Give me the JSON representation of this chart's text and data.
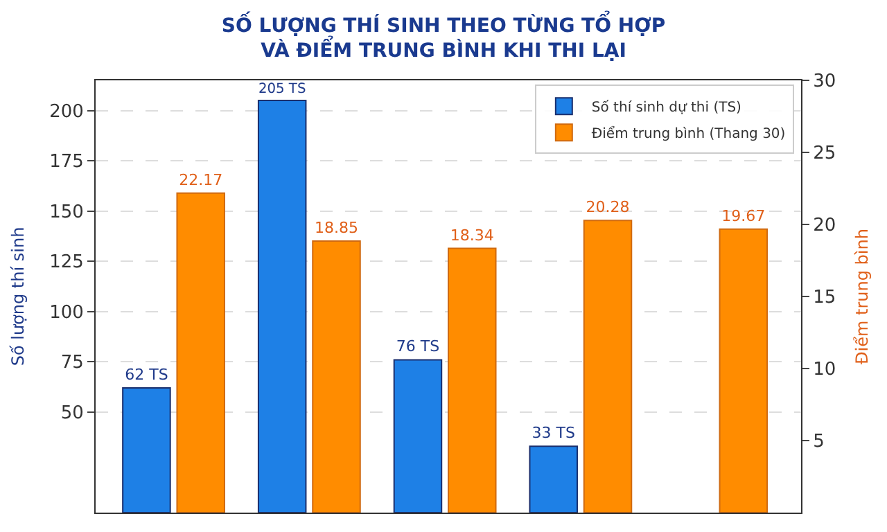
{
  "chart_data": {
    "type": "bar",
    "title": "SỐ LƯỢNG THÍ SINH THEO TỪNG TỔ HỢP\nVÀ ĐIỂM TRUNG BÌNH KHI THI LẠI",
    "ylabel": "Số lượng thí sinh",
    "y2label": "Điểm trung bình",
    "categories": [
      null,
      null,
      null,
      null,
      null
    ],
    "series": [
      {
        "name": "Số thí sinh dự thi (TS)",
        "color": "#1e80e6",
        "values": [
          62,
          205,
          76,
          33,
          null
        ],
        "value_labels": [
          "62 TS",
          "205 TS",
          "76 TS",
          "33 TS",
          null
        ]
      },
      {
        "name": "Điểm trung bình (Thang 30)",
        "color": "#ff8c00",
        "axis": "y2",
        "values": [
          22.17,
          18.85,
          18.34,
          20.28,
          19.67
        ],
        "value_labels": [
          "22.17",
          "18.85",
          "18.34",
          "20.28",
          "19.67"
        ]
      }
    ],
    "ylim": [
      0,
      215
    ],
    "yticks": [
      50,
      75,
      100,
      125,
      150,
      175,
      200
    ],
    "y2lim": [
      0,
      30
    ],
    "y2ticks": [
      5,
      10,
      15,
      20,
      25,
      30
    ],
    "grid": "y",
    "legend": "top right",
    "tick_labels": "y"
  }
}
